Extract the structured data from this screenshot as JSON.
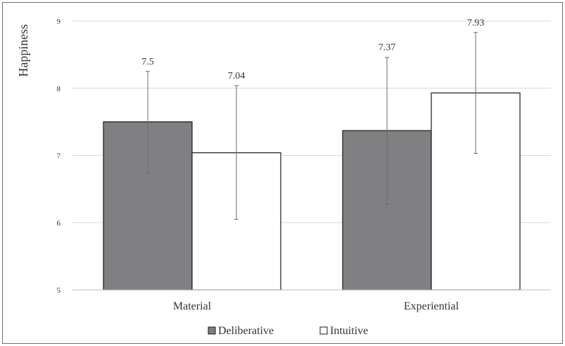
{
  "chart_data": {
    "type": "bar",
    "title": "",
    "xlabel": "",
    "ylabel": "Happiness",
    "ylim": [
      5,
      9
    ],
    "yticks": [
      5,
      6,
      7,
      8,
      9
    ],
    "grid": true,
    "legend_position": "bottom",
    "categories": [
      "Material",
      "Experiential"
    ],
    "series": [
      {
        "name": "Deliberative",
        "color": "#808083",
        "values": [
          7.5,
          7.37
        ],
        "error_low": [
          6.74,
          6.27
        ],
        "error_high": [
          8.25,
          8.46
        ],
        "value_labels": [
          "7.5",
          "7.37"
        ]
      },
      {
        "name": "Intuitive",
        "color": "#ffffff",
        "values": [
          7.04,
          7.93
        ],
        "error_low": [
          6.05,
          7.03
        ],
        "error_high": [
          8.04,
          8.83
        ],
        "value_labels": [
          "7.04",
          "7.93"
        ]
      }
    ]
  }
}
